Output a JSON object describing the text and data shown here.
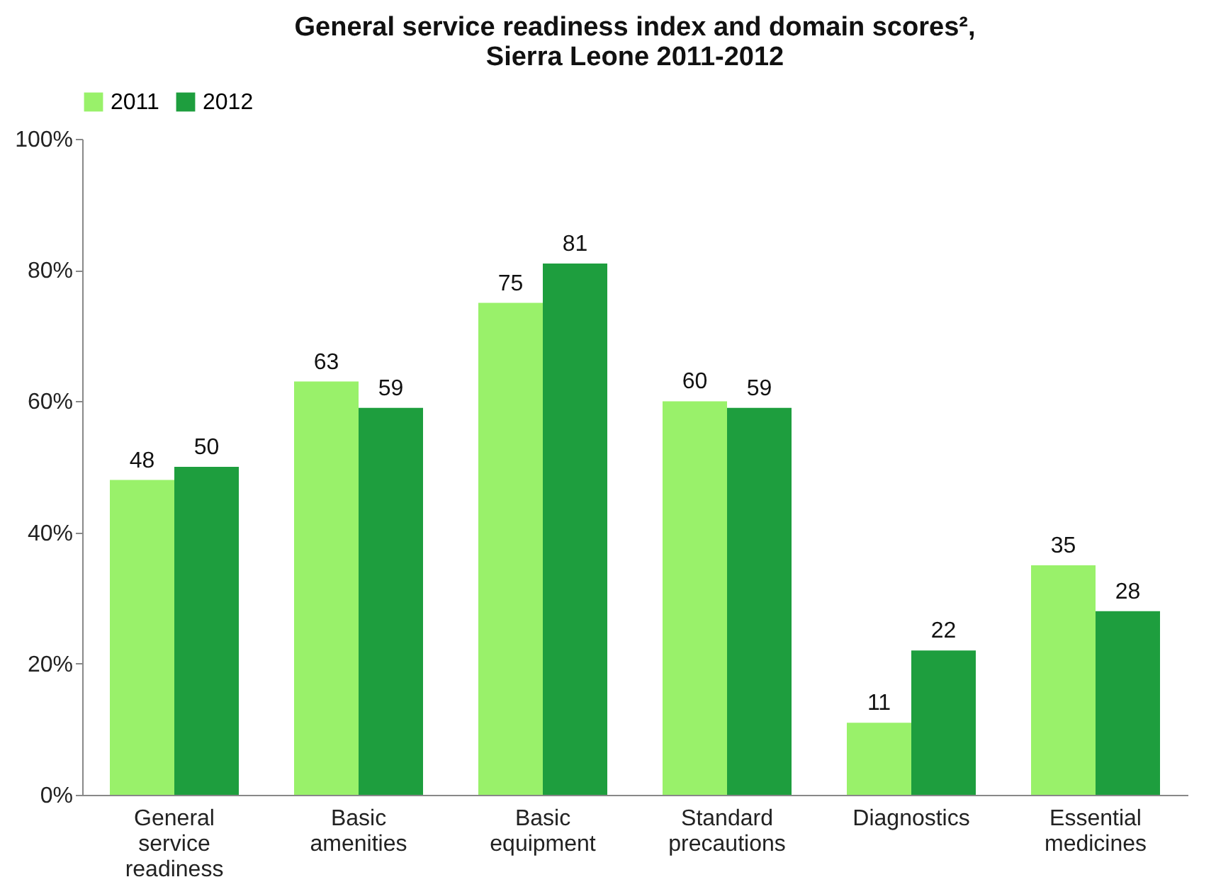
{
  "chart_data": {
    "type": "bar",
    "title": "General service readiness index and domain scores²,\nSierra Leone 2011-2012",
    "categories": [
      "General service readiness",
      "Basic amenities",
      "Basic equipment",
      "Standard precautions",
      "Diagnostics",
      "Essential medicines"
    ],
    "series": [
      {
        "name": "2011",
        "color": "#99f16a",
        "values": [
          48,
          63,
          75,
          60,
          11,
          35
        ]
      },
      {
        "name": "2012",
        "color": "#1e9e3e",
        "values": [
          50,
          59,
          81,
          59,
          22,
          28
        ]
      }
    ],
    "ylim": [
      0,
      100
    ],
    "yticks": [
      {
        "value": 0,
        "label": "0%"
      },
      {
        "value": 20,
        "label": "20%"
      },
      {
        "value": 40,
        "label": "40%"
      },
      {
        "value": 60,
        "label": "60%"
      },
      {
        "value": 80,
        "label": "80%"
      },
      {
        "value": 100,
        "label": "100%"
      }
    ],
    "data_labels": true,
    "legend": "top",
    "grid": false
  }
}
